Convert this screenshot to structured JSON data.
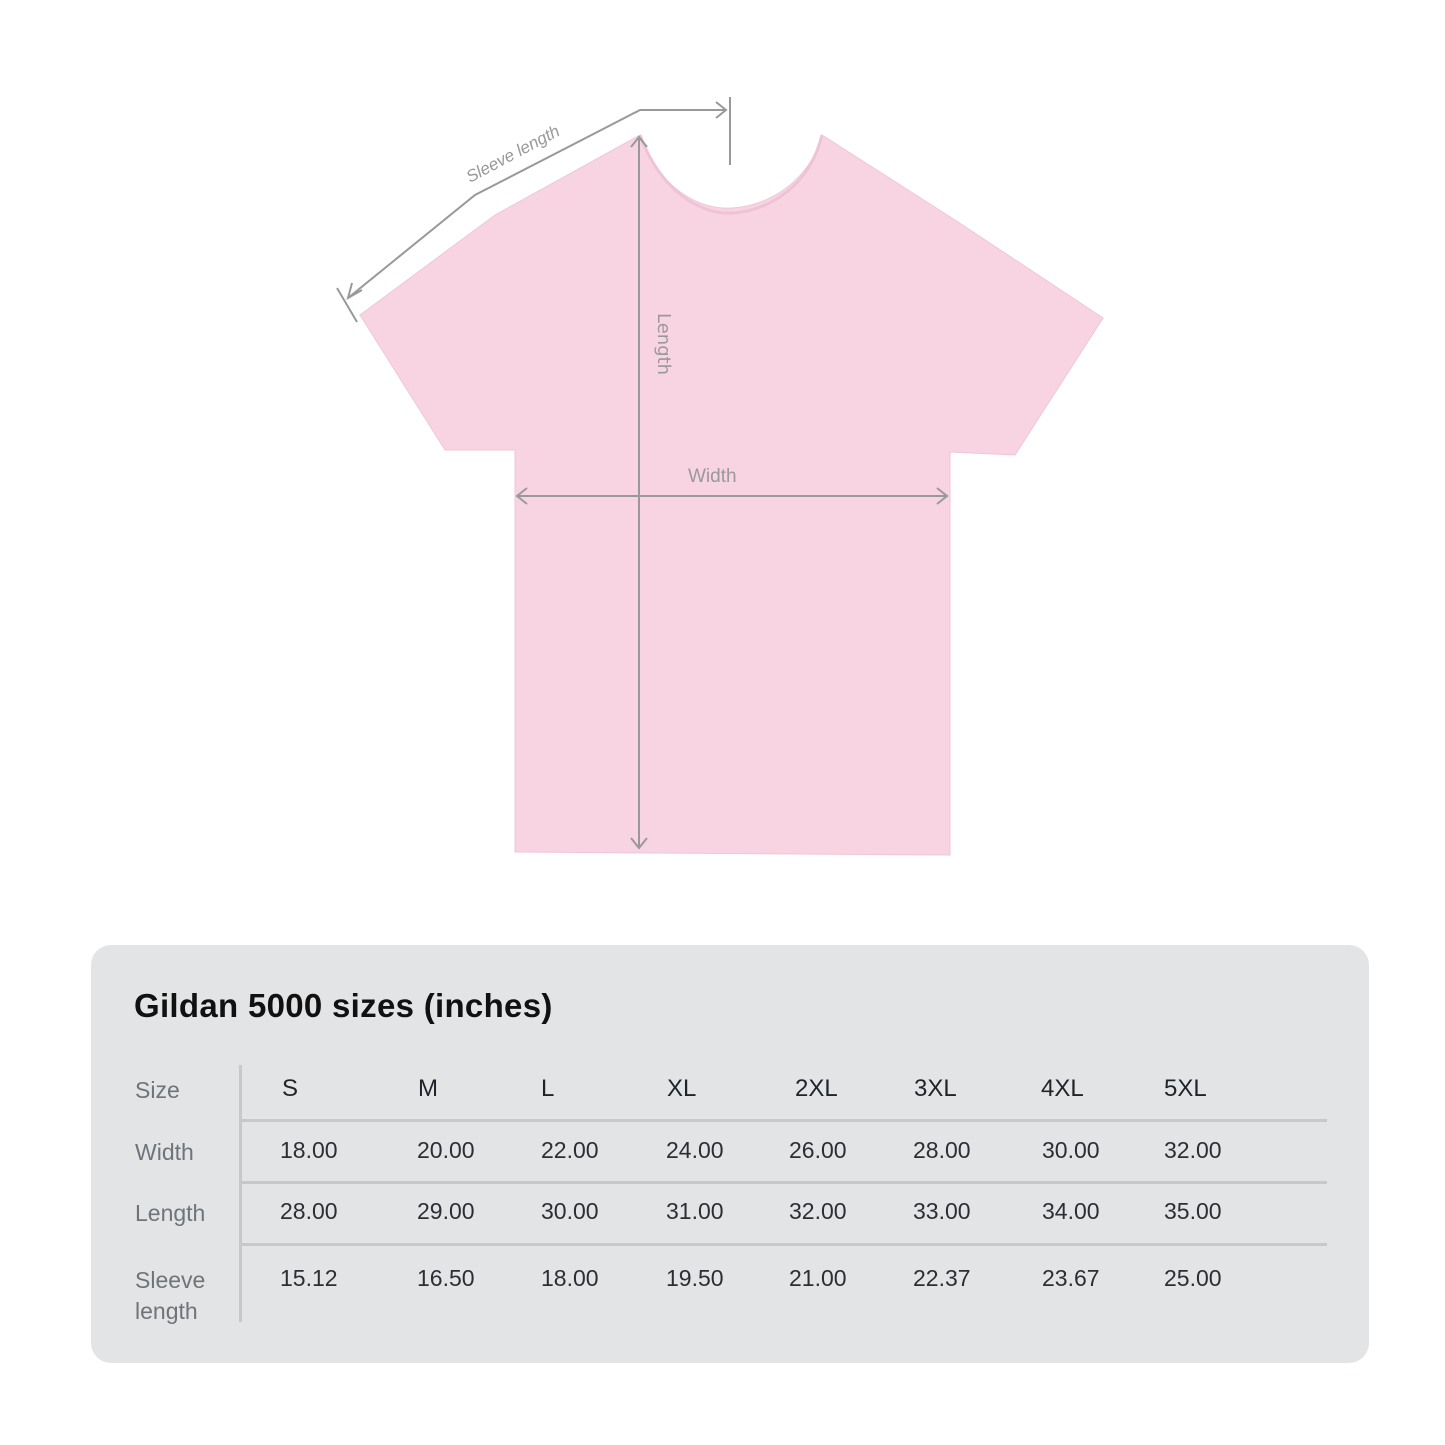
{
  "diagram": {
    "garment_color": "#f8d4e3",
    "measure_line_color": "#999999",
    "labels": {
      "sleeve_length": "Sleeve length",
      "length": "Length",
      "width": "Width"
    }
  },
  "table": {
    "title": "Gildan 5000 sizes (inches)",
    "row_labels": {
      "size": "Size",
      "width": "Width",
      "length": "Length",
      "sleeve_line1": "Sleeve",
      "sleeve_line2": "length"
    },
    "sizes": [
      "S",
      "M",
      "L",
      "XL",
      "2XL",
      "3XL",
      "4XL",
      "5XL"
    ],
    "width": [
      "18.00",
      "20.00",
      "22.00",
      "24.00",
      "26.00",
      "28.00",
      "30.00",
      "32.00"
    ],
    "length": [
      "28.00",
      "29.00",
      "30.00",
      "31.00",
      "32.00",
      "33.00",
      "34.00",
      "35.00"
    ],
    "sleeve_length": [
      "15.12",
      "16.50",
      "18.00",
      "19.50",
      "21.00",
      "22.37",
      "23.67",
      "25.00"
    ]
  }
}
